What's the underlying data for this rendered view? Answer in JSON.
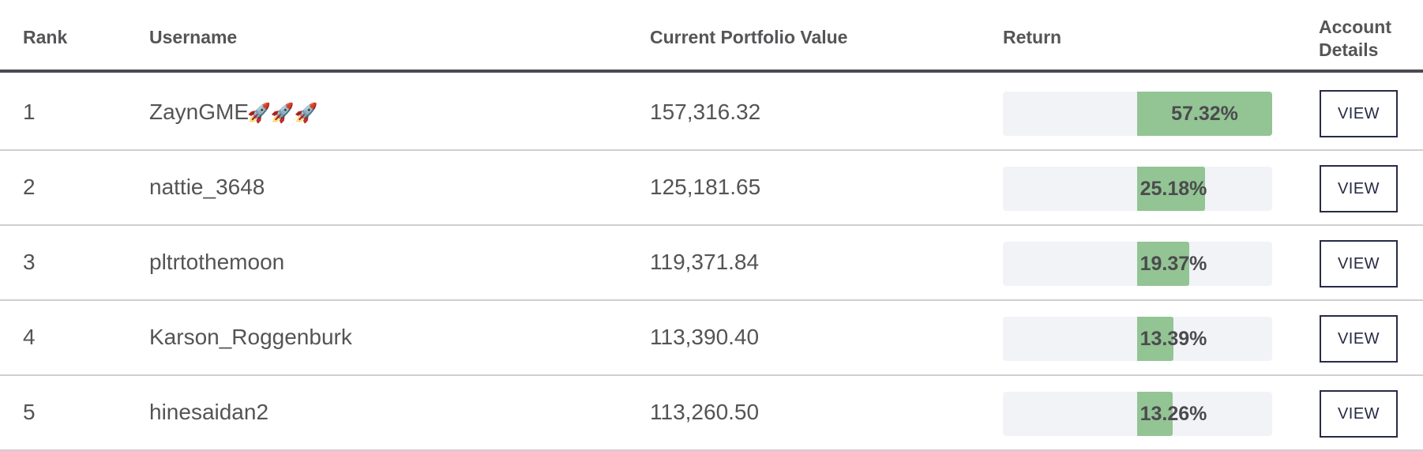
{
  "header": {
    "rank": "Rank",
    "username": "Username",
    "portfolio_value": "Current Portfolio Value",
    "return": "Return",
    "account_details_line1": "Account",
    "account_details_line2": "Details"
  },
  "rows": [
    {
      "rank": "1",
      "username": "ZaynGME",
      "username_suffix": "🚀🚀🚀",
      "value": "157,316.32",
      "return_label": "57.32%",
      "return_pct": 57.32,
      "view_label": "VIEW"
    },
    {
      "rank": "2",
      "username": "nattie_3648",
      "username_suffix": "",
      "value": "125,181.65",
      "return_label": "25.18%",
      "return_pct": 25.18,
      "view_label": "VIEW"
    },
    {
      "rank": "3",
      "username": "pltrtothemoon",
      "username_suffix": "",
      "value": "119,371.84",
      "return_label": "19.37%",
      "return_pct": 19.37,
      "view_label": "VIEW"
    },
    {
      "rank": "4",
      "username": "Karson_Roggenburk",
      "username_suffix": "",
      "value": "113,390.40",
      "return_label": "13.39%",
      "return_pct": 13.39,
      "view_label": "VIEW"
    },
    {
      "rank": "5",
      "username": "hinesaidan2",
      "username_suffix": "",
      "value": "113,260.50",
      "return_label": "13.26%",
      "return_pct": 13.26,
      "view_label": "VIEW"
    }
  ],
  "colors": {
    "bar_fill": "#93c494",
    "bar_track": "#f1f3f7",
    "button_border": "#272b45"
  }
}
